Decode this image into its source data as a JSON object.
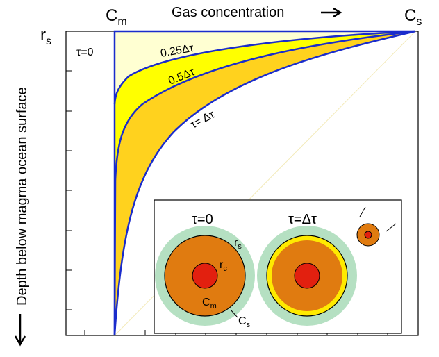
{
  "header": {
    "c_m": {
      "main": "C",
      "sub": "m"
    },
    "title": "Gas concentration",
    "c_s": {
      "main": "C",
      "sub": "s"
    }
  },
  "axis": {
    "r_s": {
      "main": "r",
      "sub": "s"
    },
    "y_label": "Depth below magma ocean surface"
  },
  "curves": {
    "t0": "τ=0",
    "t025": "0.25Δτ",
    "t05": "0.5Δτ",
    "t1": "τ= Δτ"
  },
  "inset": {
    "left_title": "τ=0",
    "right_title": "τ=Δτ",
    "r_s": {
      "main": "r",
      "sub": "s"
    },
    "r_c": {
      "main": "r",
      "sub": "c"
    },
    "c_m": {
      "main": "C",
      "sub": "m"
    },
    "c_s": {
      "main": "C",
      "sub": "s"
    }
  }
}
